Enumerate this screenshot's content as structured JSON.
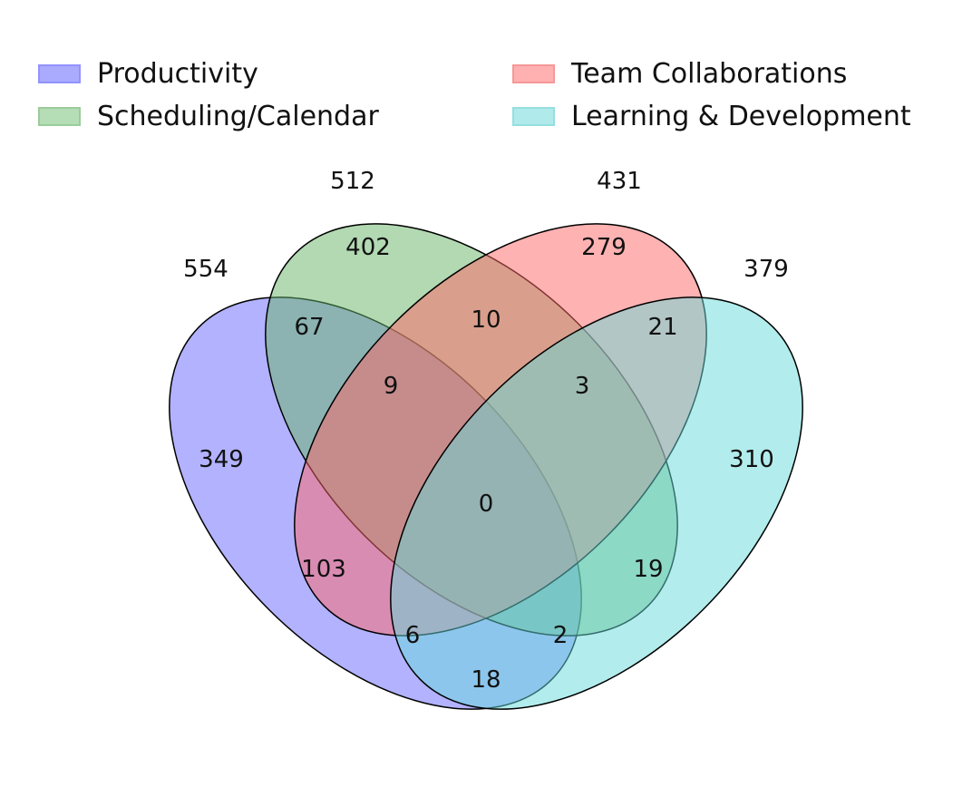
{
  "legend": [
    {
      "label": "Productivity",
      "fill": "#6666ff",
      "edge": "#3b3bff"
    },
    {
      "label": "Scheduling/Calendar",
      "fill": "#7cc47c",
      "edge": "#4aa34a"
    },
    {
      "label": "Team Collaborations",
      "fill": "#ff7373",
      "edge": "#f04545"
    },
    {
      "label": "Learning & Development",
      "fill": "#73d9d9",
      "edge": "#3ec6c6"
    }
  ],
  "sets": [
    {
      "name": "Productivity",
      "total": "554",
      "color": "#6666ff"
    },
    {
      "name": "Scheduling/Calendar",
      "total": "512",
      "color": "#66b366"
    },
    {
      "name": "Team Collaborations",
      "total": "431",
      "color": "#ff6666"
    },
    {
      "name": "Learning & Development",
      "total": "379",
      "color": "#66d9d9"
    }
  ],
  "regions": [
    {
      "sets": [
        "Productivity"
      ],
      "value": "349"
    },
    {
      "sets": [
        "Scheduling/Calendar"
      ],
      "value": "402"
    },
    {
      "sets": [
        "Team Collaborations"
      ],
      "value": "279"
    },
    {
      "sets": [
        "Learning & Development"
      ],
      "value": "310"
    },
    {
      "sets": [
        "Productivity",
        "Scheduling/Calendar"
      ],
      "value": "67"
    },
    {
      "sets": [
        "Scheduling/Calendar",
        "Team Collaborations"
      ],
      "value": "10"
    },
    {
      "sets": [
        "Team Collaborations",
        "Learning & Development"
      ],
      "value": "21"
    },
    {
      "sets": [
        "Productivity",
        "Scheduling/Calendar",
        "Team Collaborations"
      ],
      "value": "9"
    },
    {
      "sets": [
        "Scheduling/Calendar",
        "Team Collaborations",
        "Learning & Development"
      ],
      "value": "3"
    },
    {
      "sets": [
        "Productivity",
        "Scheduling/Calendar",
        "Team Collaborations",
        "Learning & Development"
      ],
      "value": "0"
    },
    {
      "sets": [
        "Productivity",
        "Team Collaborations"
      ],
      "value": "103"
    },
    {
      "sets": [
        "Scheduling/Calendar",
        "Learning & Development"
      ],
      "value": "19"
    },
    {
      "sets": [
        "Productivity",
        "Team Collaborations",
        "Learning & Development"
      ],
      "value": "6"
    },
    {
      "sets": [
        "Productivity",
        "Scheduling/Calendar",
        "Learning & Development"
      ],
      "value": "2"
    },
    {
      "sets": [
        "Productivity",
        "Learning & Development"
      ],
      "value": "18"
    }
  ]
}
